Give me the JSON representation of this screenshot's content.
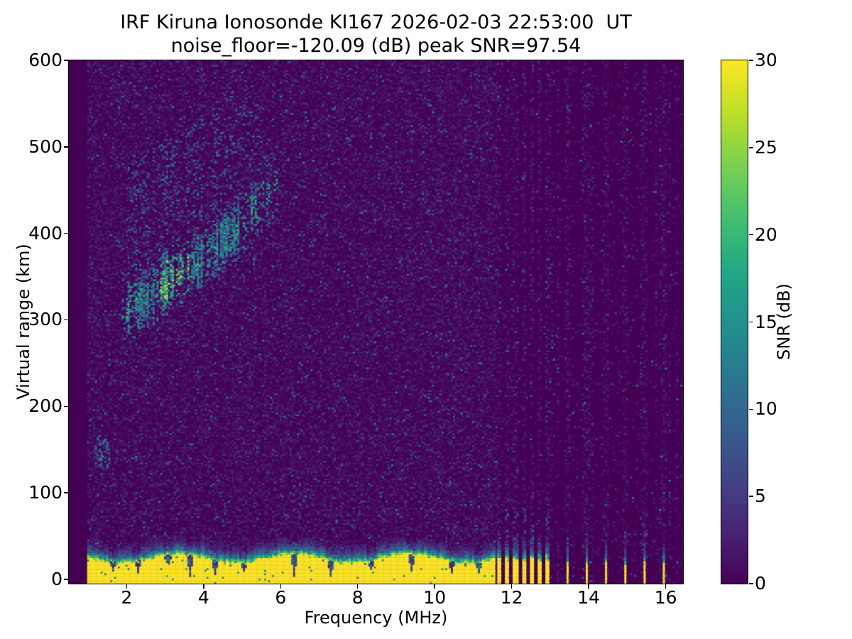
{
  "title": {
    "line1": "IRF Kiruna Ionosonde KI167 2026-02-03 22:53:00  UT",
    "line2": "noise_floor=-120.09 (dB) peak SNR=97.54"
  },
  "axes": {
    "xlabel": "Frequency (MHz)",
    "ylabel": "Virtual range (km)",
    "xlim": [
      0.5,
      16.45
    ],
    "ylim": [
      -5,
      600
    ],
    "xticks": [
      2,
      4,
      6,
      8,
      10,
      12,
      14,
      16
    ],
    "yticks": [
      0,
      100,
      200,
      300,
      400,
      500,
      600
    ]
  },
  "colorbar": {
    "label": "SNR (dB)",
    "min": 0,
    "max": 30,
    "ticks": [
      0,
      5,
      10,
      15,
      20,
      25,
      30
    ],
    "colormap": "viridis",
    "stops": [
      "#440154",
      "#482475",
      "#414487",
      "#355f8d",
      "#2a788e",
      "#21918c",
      "#22a884",
      "#44bf70",
      "#7ad151",
      "#bddf26",
      "#fde725"
    ]
  },
  "chart_data": {
    "type": "heatmap",
    "title": "IRF Kiruna Ionosonde KI167 2026-02-03 22:53:00  UT",
    "subtitle": "noise_floor=-120.09 (dB) peak SNR=97.54",
    "xlabel": "Frequency (MHz)",
    "ylabel": "Virtual range (km)",
    "value_label": "SNR (dB)",
    "value_range_db": [
      0,
      30
    ],
    "x_range_mhz": [
      1.0,
      16.4
    ],
    "x_step_mhz": 0.05,
    "y_range_km": [
      -5,
      600
    ],
    "y_step_km": 2,
    "seed": 1337,
    "background_db": 0,
    "noise": {
      "base_prob": 0.4,
      "right_region_start_mhz": 11.62,
      "right_base_prob": 0.055,
      "right_col_prob": 0.28,
      "right_col_boosted_prob": 0.32,
      "faint_db": [
        0.6,
        3.0
      ],
      "medium_db": [
        3.0,
        6.6
      ],
      "bright_db": [
        7.5,
        13.5
      ]
    },
    "ground_echo": {
      "f_mhz": [
        1.0,
        11.57
      ],
      "snr_db": 30,
      "yellow_top_km": [
        18,
        29
      ],
      "cap_top_km": 45,
      "decay_km": 5.5,
      "notch_halfwidth_mhz": 0.05,
      "notches": [
        [
          1.65,
          0.45
        ],
        [
          2.3,
          0.4
        ],
        [
          3.08,
          0.5
        ],
        [
          3.65,
          0.12
        ],
        [
          4.3,
          0.18
        ],
        [
          5.05,
          0.45
        ],
        [
          6.35,
          0.1
        ],
        [
          7.3,
          0.15
        ],
        [
          8.35,
          0.45
        ],
        [
          9.4,
          0.3
        ],
        [
          10.45,
          0.35
        ],
        [
          11.15,
          0.4
        ]
      ]
    },
    "rfi_stripes_mhz": [
      11.68,
      11.89,
      12.1,
      12.31,
      12.52,
      12.73,
      12.94
    ],
    "rfi_stripe_top_km": 20,
    "sparse_stripes_mhz": [
      13.45,
      13.95,
      14.45,
      14.95,
      15.45,
      15.95
    ],
    "sparse_stripe_top_km": 16,
    "echo_trace": {
      "f_mhz": [
        1.85,
        5.95
      ],
      "virtual_height_points": [
        [
          1.85,
          303
        ],
        [
          2.2,
          313
        ],
        [
          2.6,
          323
        ],
        [
          3.0,
          334
        ],
        [
          3.4,
          347
        ],
        [
          3.8,
          360
        ],
        [
          4.2,
          374
        ],
        [
          4.6,
          390
        ],
        [
          5.0,
          406
        ],
        [
          5.4,
          424
        ],
        [
          5.7,
          437
        ],
        [
          5.95,
          448
        ]
      ],
      "band_halfwidth_km": 30,
      "peak_region_mhz": [
        2.85,
        3.65
      ],
      "peak_snr_db": 30,
      "typical_snr_db": [
        8,
        20
      ],
      "diffuse_above_km": 120
    },
    "sporadic_cluster": {
      "f_mhz": [
        1.18,
        1.58
      ],
      "range_km": [
        128,
        162
      ],
      "snr_db": [
        5,
        16
      ]
    }
  }
}
